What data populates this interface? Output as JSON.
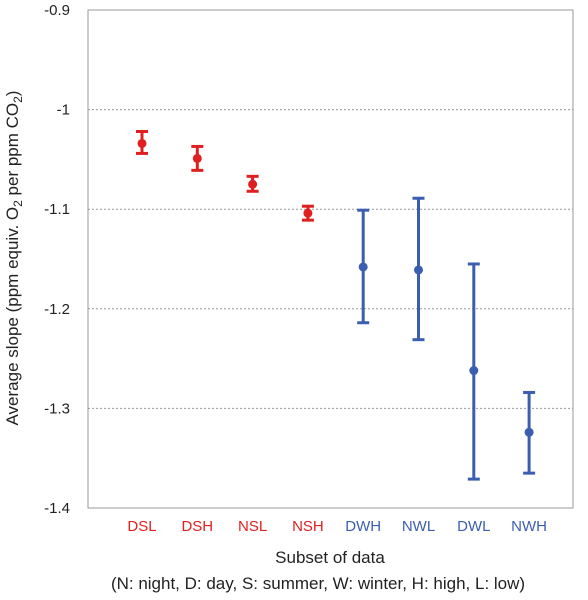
{
  "chart_data": {
    "type": "scatter",
    "ylabel_main": "Average slope (ppm equiv. O",
    "ylabel_sub1": "2",
    "ylabel_mid": " per ppm CO",
    "ylabel_sub2": "2",
    "ylabel_end": ")",
    "xlabel": "Subset of data",
    "xlabel_note": "(N: night, D: day, S: summer, W: winter, H: high, L: low)",
    "ylim": [
      -1.4,
      -0.9
    ],
    "yticks": [
      -0.9,
      -1,
      -1.1,
      -1.2,
      -1.3,
      -1.4
    ],
    "ytick_labels": [
      "-0.9",
      "-1",
      "-1.1",
      "-1.2",
      "-1.3",
      "-1.4"
    ],
    "grid": "horizontal dotted",
    "colors": {
      "summer": "#e02020",
      "winter": "#3a5fb0",
      "grid": "#999999",
      "axis": "#999999"
    },
    "categories": [
      "DSL",
      "DSH",
      "NSL",
      "NSH",
      "DWH",
      "NWL",
      "DWL",
      "NWH"
    ],
    "points": [
      {
        "label": "DSL",
        "y": -1.034,
        "err_low": -1.044,
        "err_high": -1.022,
        "group": "summer"
      },
      {
        "label": "DSH",
        "y": -1.049,
        "err_low": -1.061,
        "err_high": -1.037,
        "group": "summer"
      },
      {
        "label": "NSL",
        "y": -1.075,
        "err_low": -1.082,
        "err_high": -1.067,
        "group": "summer"
      },
      {
        "label": "NSH",
        "y": -1.104,
        "err_low": -1.111,
        "err_high": -1.097,
        "group": "summer"
      },
      {
        "label": "DWH",
        "y": -1.158,
        "err_low": -1.214,
        "err_high": -1.101,
        "group": "winter"
      },
      {
        "label": "NWL",
        "y": -1.161,
        "err_low": -1.231,
        "err_high": -1.089,
        "group": "winter"
      },
      {
        "label": "DWL",
        "y": -1.262,
        "err_low": -1.371,
        "err_high": -1.155,
        "group": "winter"
      },
      {
        "label": "NWH",
        "y": -1.324,
        "err_low": -1.365,
        "err_high": -1.284,
        "group": "winter"
      }
    ]
  }
}
